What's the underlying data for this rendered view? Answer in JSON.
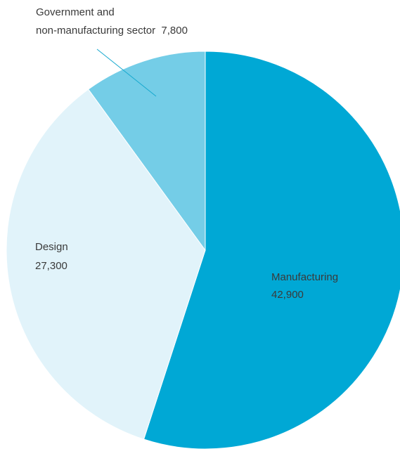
{
  "chart_data": {
    "type": "pie",
    "title": "",
    "slices": [
      {
        "label": "Manufacturing",
        "value": 42900,
        "value_text": "42,900",
        "color": "#00a8d5"
      },
      {
        "label": "Design",
        "value": 27300,
        "value_text": "27,300",
        "color": "#e1f3fa"
      },
      {
        "label": "Government and non-manufacturing sector",
        "label_lines": [
          "Government and",
          "non-manufacturing sector"
        ],
        "value": 7800,
        "value_text": "7,800",
        "color": "#74cde7"
      }
    ],
    "start": "12 o'clock",
    "direction": "clockwise",
    "legend": "none",
    "label_style": "inside labels; small slice labelled outside with a leader line"
  }
}
